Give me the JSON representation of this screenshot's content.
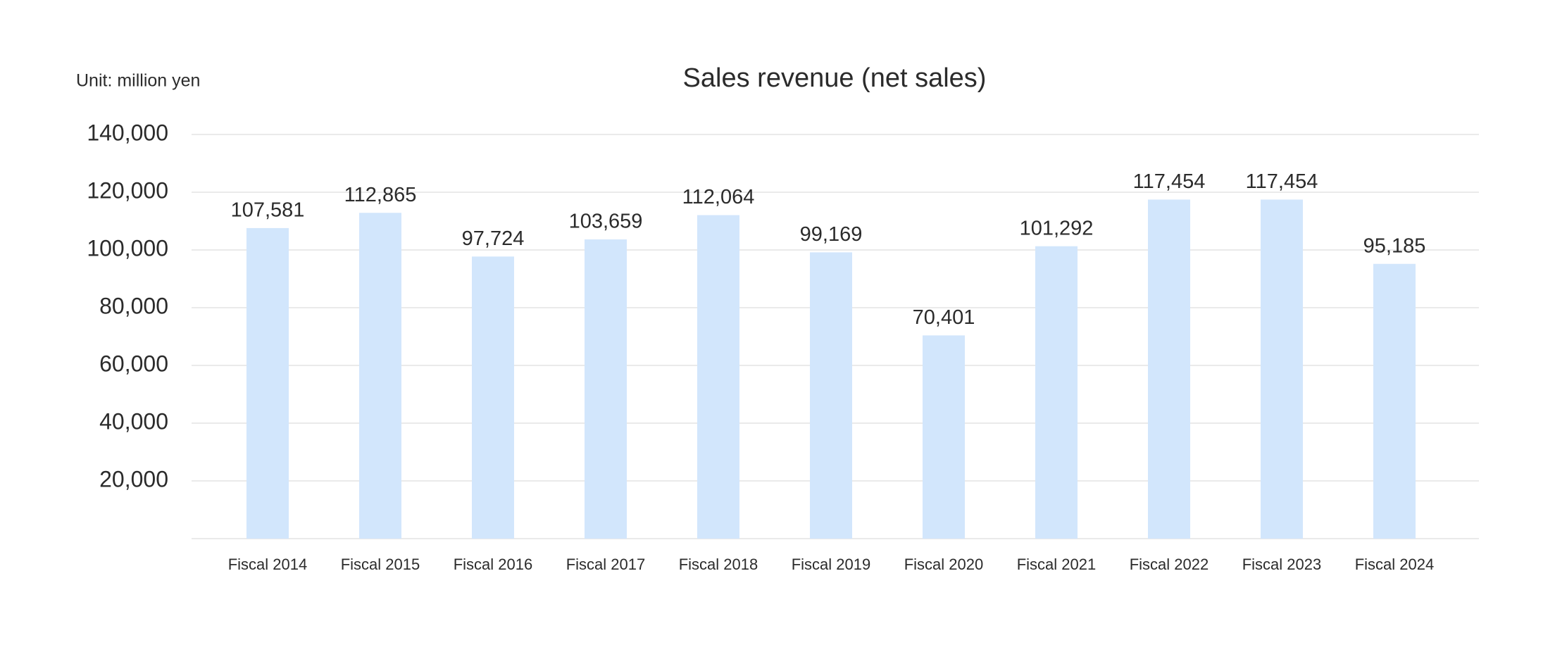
{
  "chart_data": {
    "type": "bar",
    "title": "Sales revenue (net sales)",
    "unit_label": "Unit: million yen",
    "categories": [
      "Fiscal 2014",
      "Fiscal 2015",
      "Fiscal 2016",
      "Fiscal 2017",
      "Fiscal 2018",
      "Fiscal 2019",
      "Fiscal 2020",
      "Fiscal 2021",
      "Fiscal 2022",
      "Fiscal 2023",
      "Fiscal 2024"
    ],
    "values": [
      107581,
      112865,
      97724,
      103659,
      112064,
      99169,
      70401,
      101292,
      117454,
      117454,
      95185
    ],
    "value_labels": [
      "107,581",
      "112,865",
      "97,724",
      "103,659",
      "112,064",
      "99,169",
      "70,401",
      "101,292",
      "117,454",
      "117,454",
      "95,185"
    ],
    "color": "#d2e6fc",
    "ylim": [
      0,
      140000
    ],
    "yticks": [
      {
        "value": 20000,
        "label": "20,000"
      },
      {
        "value": 40000,
        "label": "40,000"
      },
      {
        "value": 60000,
        "label": "60,000"
      },
      {
        "value": 80000,
        "label": "80,000"
      },
      {
        "value": 100000,
        "label": "100,000"
      },
      {
        "value": 120000,
        "label": "120,000"
      },
      {
        "value": 140000,
        "label": "140,000"
      }
    ],
    "grid": true
  }
}
